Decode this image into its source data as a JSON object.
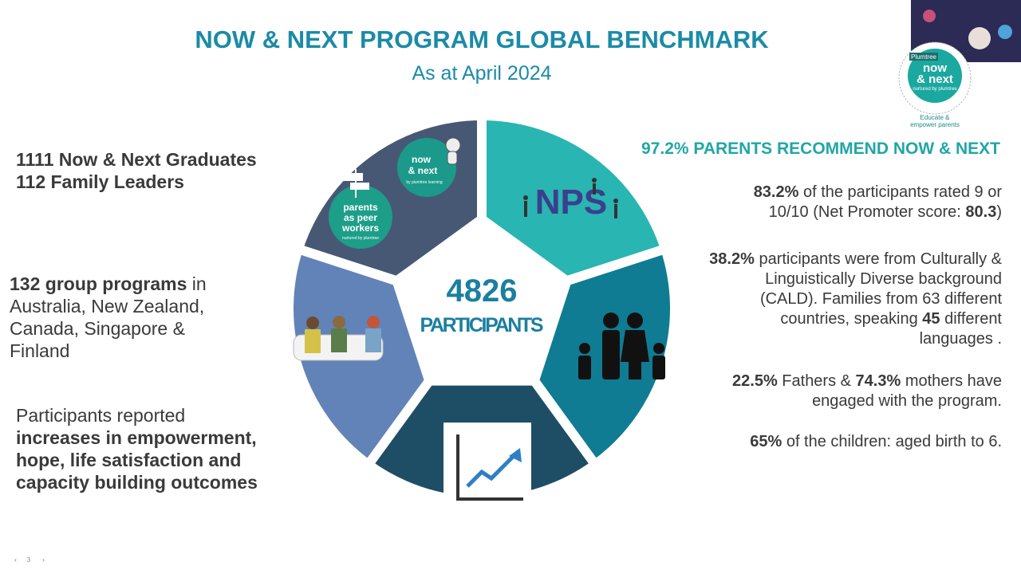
{
  "header": {
    "title": "NOW & NEXT PROGRAM GLOBAL BENCHMARK",
    "subtitle": "As at April 2024"
  },
  "left": {
    "graduates": [
      "1111 Now & Next Graduates",
      "112 Family Leaders"
    ],
    "programs": [
      "132 group programs",
      " in Australia, New Zealand, Canada, Singapore & Finland"
    ],
    "outcomes": [
      "Participants reported",
      "increases in empowerment, hope, life satisfaction and capacity building outcomes"
    ]
  },
  "center": {
    "count": "4826",
    "label": "PARTICIPANTS"
  },
  "logos": {
    "now_next": [
      "now",
      "& next",
      "by plumtree learning"
    ],
    "peer": [
      "parents",
      "as peer",
      "workers",
      "nurtured by plumtree"
    ],
    "nps": "NPS"
  },
  "right": {
    "headline": "97.2% PARENTS RECOMMEND NOW & NEXT",
    "nps": [
      "83.2%",
      " of the participants rated 9 or 10/10 (Net Promoter score: ",
      "80.3",
      ")"
    ],
    "cald": [
      "38.2%",
      " participants were from Culturally & Linguistically Diverse background (CALD). Families from 63 different countries, speaking ",
      "45",
      " different languages ."
    ],
    "parents": [
      "22.5%",
      " Fathers &  ",
      "74.3%",
      " mothers have engaged with the program."
    ],
    "children": [
      "65%",
      " of the children: aged birth to 6."
    ]
  },
  "corner": {
    "brand": "Plumtree",
    "logo": [
      "now",
      "& next",
      "nurtured by plumtree"
    ],
    "tagline": [
      "Educate &",
      "empower parents"
    ]
  },
  "footer": {
    "page": "3"
  }
}
